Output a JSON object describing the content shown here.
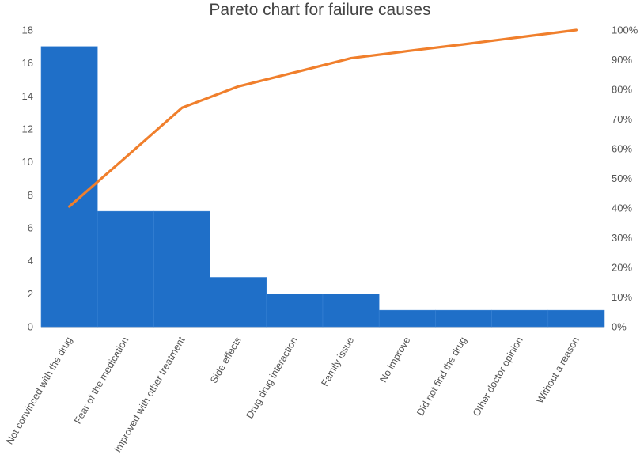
{
  "chart_data": {
    "type": "bar",
    "title": "Pareto chart for failure causes",
    "categories": [
      "Not convinced with the drug",
      "Fear of the medication",
      "Improved with other treatment",
      "Side effects",
      "Drug drug interaction",
      "Family issue",
      "No improve",
      "Did not find the drug",
      "Other doctor opinion",
      "Without a reason"
    ],
    "series": [
      {
        "kind": "bar",
        "axis": "left",
        "values": [
          17,
          7,
          7,
          3,
          2,
          2,
          1,
          1,
          1,
          1
        ],
        "color": "#1f6fc8"
      },
      {
        "kind": "line",
        "axis": "right",
        "values": [
          40.5,
          57.1,
          73.8,
          81.0,
          85.7,
          90.5,
          92.9,
          95.2,
          97.6,
          100.0
        ],
        "color": "#f07f2c"
      }
    ],
    "left_axis": {
      "ylim": [
        0,
        18
      ],
      "ticks": [
        "0",
        "2",
        "4",
        "6",
        "8",
        "10",
        "12",
        "14",
        "16",
        "18"
      ]
    },
    "right_axis": {
      "ylim": [
        0,
        100
      ],
      "ticks": [
        "0%",
        "10%",
        "20%",
        "30%",
        "40%",
        "50%",
        "60%",
        "70%",
        "80%",
        "90%",
        "100%"
      ]
    },
    "grid": false,
    "legend": "none"
  }
}
